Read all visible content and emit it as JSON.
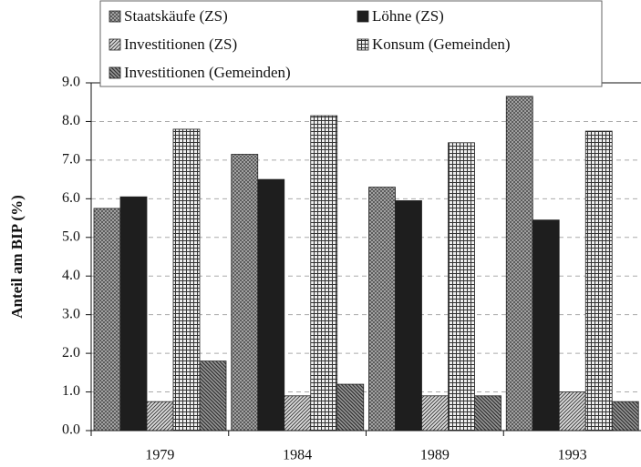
{
  "chart_data": {
    "type": "bar",
    "y_label": "Anteil am BIP (%)",
    "categories": [
      "1979",
      "1984",
      "1989",
      "1993"
    ],
    "series": [
      {
        "name": "Staatskäufe (ZS)",
        "color": "#555555",
        "pattern": "crosshatch",
        "values": [
          5.75,
          7.15,
          6.3,
          8.65
        ]
      },
      {
        "name": "Löhne (ZS)",
        "color": "#1e1e1e",
        "pattern": "solid",
        "values": [
          6.05,
          6.5,
          5.95,
          5.45
        ]
      },
      {
        "name": "Investitionen (ZS)",
        "color": "#444444",
        "pattern": "diagonal",
        "values": [
          0.75,
          0.9,
          0.9,
          1.0
        ]
      },
      {
        "name": "Konsum (Gemeinden)",
        "color": "#333333",
        "pattern": "grid",
        "values": [
          7.8,
          8.15,
          7.45,
          7.75
        ]
      },
      {
        "name": "Investitionen (Gemeinden)",
        "color": "#333333",
        "pattern": "diagonal-dense",
        "values": [
          1.8,
          1.2,
          0.9,
          0.75
        ]
      }
    ],
    "ylim": [
      0,
      9
    ],
    "yticks": [
      {
        "value": 0,
        "label": "0.0"
      },
      {
        "value": 1,
        "label": "1.0"
      },
      {
        "value": 2,
        "label": "2.0"
      },
      {
        "value": 3,
        "label": "3.0"
      },
      {
        "value": 4,
        "label": "4.0"
      },
      {
        "value": 5,
        "label": "5.0"
      },
      {
        "value": 6,
        "label": "6.0"
      },
      {
        "value": 7,
        "label": "7.0"
      },
      {
        "value": 8,
        "label": "8.0"
      },
      {
        "value": 9,
        "label": "9.0"
      }
    ],
    "grid": true
  }
}
